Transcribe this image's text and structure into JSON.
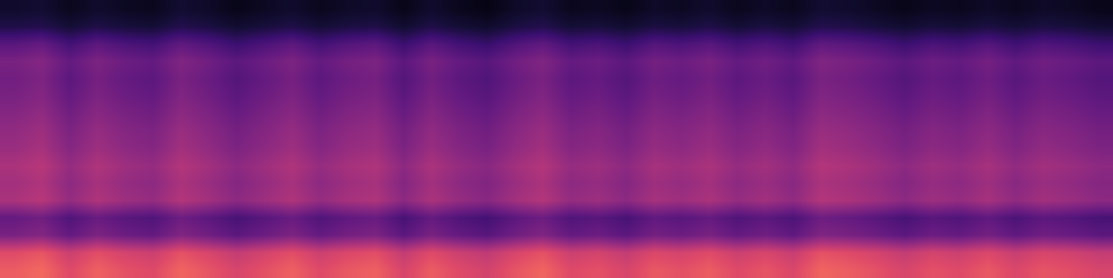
{
  "chart_data": {
    "type": "heatmap",
    "color": "magma",
    "tick_labels": false,
    "zlim": [
      0,
      100
    ],
    "cells": [
      [
        65,
        68,
        60,
        66,
        62,
        60,
        67,
        63,
        58,
        62,
        66,
        60,
        64,
        66,
        58,
        65,
        60,
        57,
        63,
        67,
        60,
        62,
        58,
        64,
        62,
        65,
        60,
        63,
        59,
        67,
        65,
        62,
        58,
        62,
        60,
        64,
        59,
        63,
        61,
        58
      ],
      [
        60,
        63,
        55,
        61,
        57,
        55,
        62,
        58,
        53,
        57,
        61,
        55,
        59,
        61,
        53,
        60,
        55,
        52,
        58,
        62,
        55,
        57,
        53,
        59,
        57,
        60,
        55,
        58,
        54,
        62,
        60,
        57,
        53,
        57,
        55,
        59,
        54,
        58,
        56,
        53
      ],
      [
        35,
        38,
        30,
        36,
        32,
        30,
        37,
        33,
        28,
        32,
        36,
        30,
        34,
        36,
        28,
        35,
        30,
        27,
        33,
        37,
        30,
        32,
        28,
        34,
        32,
        35,
        30,
        33,
        29,
        37,
        35,
        32,
        28,
        32,
        30,
        34,
        29,
        33,
        31,
        28
      ],
      [
        30,
        33,
        25,
        31,
        27,
        25,
        32,
        28,
        23,
        27,
        31,
        25,
        29,
        31,
        23,
        30,
        25,
        22,
        28,
        32,
        25,
        27,
        23,
        29,
        27,
        30,
        25,
        28,
        24,
        32,
        30,
        27,
        23,
        27,
        25,
        29,
        24,
        28,
        26,
        23
      ],
      [
        47,
        50,
        42,
        48,
        44,
        42,
        49,
        45,
        40,
        44,
        48,
        42,
        46,
        48,
        40,
        47,
        42,
        39,
        45,
        49,
        42,
        44,
        40,
        46,
        44,
        47,
        42,
        45,
        41,
        49,
        47,
        44,
        40,
        44,
        42,
        46,
        41,
        45,
        43,
        40
      ],
      [
        45,
        48,
        40,
        46,
        42,
        40,
        47,
        43,
        38,
        42,
        46,
        40,
        44,
        46,
        38,
        45,
        40,
        37,
        43,
        47,
        40,
        42,
        38,
        44,
        42,
        45,
        40,
        43,
        39,
        47,
        45,
        42,
        38,
        42,
        40,
        44,
        39,
        43,
        41,
        38
      ],
      [
        47,
        50,
        42,
        48,
        44,
        42,
        49,
        45,
        40,
        44,
        48,
        42,
        46,
        48,
        40,
        47,
        42,
        39,
        45,
        49,
        42,
        44,
        40,
        46,
        44,
        47,
        42,
        45,
        41,
        49,
        47,
        44,
        40,
        44,
        42,
        46,
        41,
        45,
        43,
        40
      ],
      [
        43,
        46,
        38,
        44,
        40,
        38,
        45,
        41,
        36,
        40,
        44,
        38,
        42,
        44,
        36,
        43,
        38,
        35,
        41,
        45,
        38,
        40,
        36,
        42,
        40,
        43,
        38,
        41,
        37,
        45,
        43,
        40,
        36,
        40,
        38,
        42,
        37,
        41,
        39,
        36
      ],
      [
        41,
        44,
        36,
        42,
        38,
        36,
        43,
        39,
        34,
        38,
        42,
        36,
        40,
        42,
        34,
        41,
        36,
        33,
        39,
        43,
        36,
        38,
        34,
        40,
        38,
        41,
        36,
        39,
        35,
        43,
        41,
        38,
        34,
        38,
        36,
        40,
        35,
        39,
        37,
        34
      ],
      [
        38,
        41,
        33,
        39,
        35,
        33,
        40,
        36,
        31,
        35,
        39,
        33,
        37,
        39,
        31,
        38,
        33,
        30,
        36,
        40,
        33,
        35,
        31,
        37,
        35,
        38,
        33,
        36,
        32,
        40,
        38,
        35,
        31,
        35,
        33,
        37,
        32,
        36,
        34,
        31
      ],
      [
        35,
        38,
        30,
        36,
        32,
        30,
        37,
        33,
        28,
        32,
        36,
        30,
        34,
        36,
        28,
        35,
        30,
        27,
        33,
        37,
        30,
        32,
        28,
        34,
        32,
        35,
        30,
        33,
        29,
        37,
        35,
        32,
        28,
        32,
        30,
        34,
        29,
        33,
        31,
        28
      ],
      [
        33,
        36,
        28,
        34,
        30,
        28,
        35,
        31,
        26,
        30,
        34,
        28,
        32,
        34,
        26,
        33,
        28,
        25,
        31,
        35,
        28,
        30,
        26,
        32,
        30,
        33,
        28,
        31,
        27,
        35,
        33,
        30,
        26,
        30,
        28,
        32,
        27,
        31,
        29,
        26
      ],
      [
        35,
        38,
        30,
        36,
        32,
        30,
        37,
        33,
        28,
        32,
        36,
        30,
        34,
        36,
        28,
        35,
        30,
        27,
        33,
        37,
        30,
        32,
        28,
        34,
        32,
        35,
        30,
        33,
        29,
        37,
        35,
        32,
        28,
        32,
        30,
        34,
        29,
        33,
        31,
        28
      ],
      [
        27,
        30,
        22,
        28,
        24,
        22,
        29,
        25,
        20,
        24,
        28,
        22,
        26,
        28,
        20,
        27,
        22,
        19,
        25,
        29,
        22,
        24,
        20,
        26,
        24,
        27,
        22,
        25,
        21,
        29,
        27,
        24,
        20,
        24,
        22,
        26,
        21,
        25,
        23,
        20
      ],
      [
        13,
        14,
        10,
        13,
        11,
        10,
        14,
        12,
        9,
        11,
        13,
        10,
        12,
        13,
        9,
        13,
        10,
        8,
        12,
        14,
        10,
        11,
        9,
        12,
        11,
        13,
        10,
        12,
        10,
        14,
        13,
        11,
        9,
        11,
        10,
        12,
        10,
        12,
        11,
        9
      ],
      [
        8,
        9,
        5,
        8,
        6,
        5,
        9,
        7,
        4,
        6,
        8,
        5,
        7,
        8,
        4,
        8,
        5,
        3,
        7,
        9,
        5,
        6,
        4,
        7,
        6,
        8,
        5,
        7,
        5,
        9,
        8,
        6,
        4,
        6,
        5,
        7,
        5,
        7,
        6,
        4
      ]
    ]
  }
}
